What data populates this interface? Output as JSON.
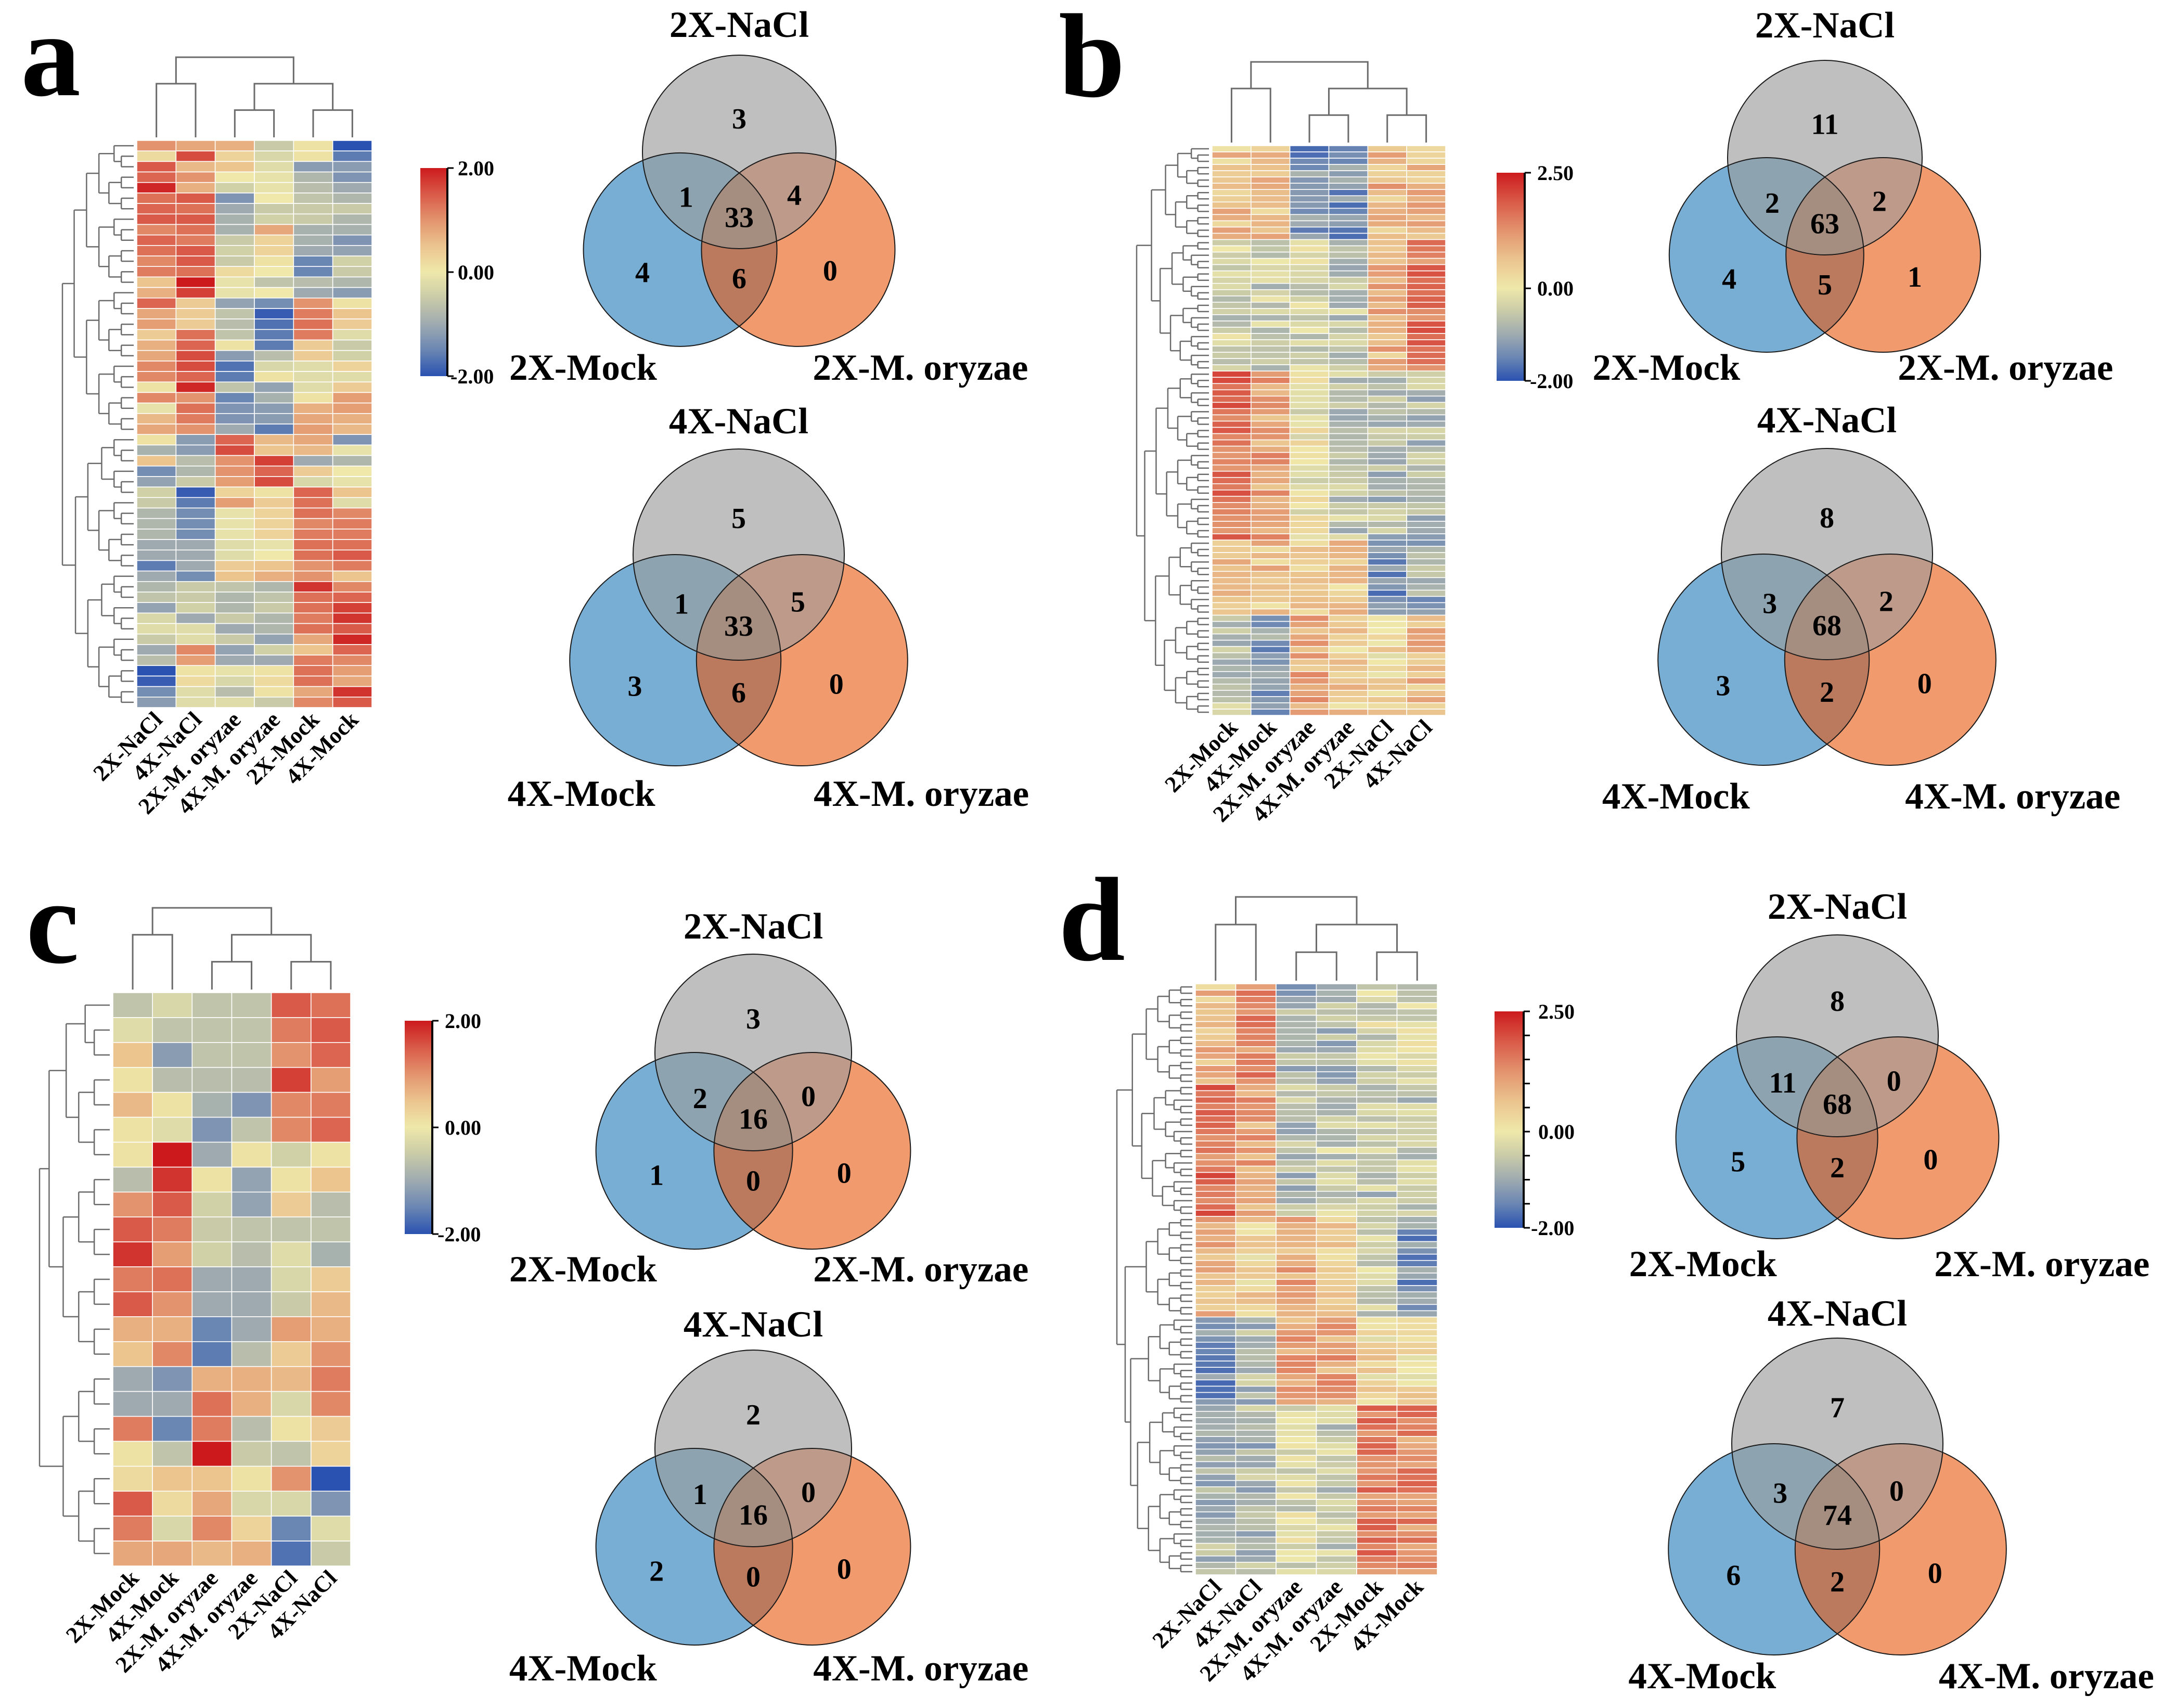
{
  "figure": {
    "panels": [
      {
        "letter": "a"
      },
      {
        "letter": "b"
      },
      {
        "letter": "c"
      },
      {
        "letter": "d"
      }
    ]
  },
  "palette": {
    "venn_top": "#bfbfbf",
    "venn_left": "#79aed4",
    "venn_right": "#f09a6e",
    "venn_top_left": "#8da3b0",
    "venn_top_right": "#bd9a8a",
    "venn_left_right": "#bb7a5e",
    "venn_all": "#a58d80",
    "venn_outline": "#1a1a1a",
    "dendrogram": "#6b6b6b",
    "heatmap_stops": [
      "#2a52b0",
      "#6a86b3",
      "#9eaab0",
      "#c9cba8",
      "#efe8aa",
      "#ebc48e",
      "#e3936e",
      "#d95a48",
      "#cc1a1c"
    ]
  },
  "chart_data": [
    {
      "panel": "a",
      "type": "heatmap",
      "columns": [
        "2X-NaCl",
        "4X-NaCl",
        "2X-M. oryzae",
        "4X-M. oryzae",
        "2X-Mock",
        "4X-Mock"
      ],
      "colorbar": {
        "min": -2,
        "max": 2,
        "max_label": "2.00",
        "mid_label": "0.00",
        "min_label": "-2.00"
      },
      "rows": [
        [
          1.0,
          0.8,
          0.7,
          -0.5,
          0.1,
          -2.0
        ],
        [
          0.2,
          1.6,
          0.3,
          -0.3,
          0.1,
          -1.6
        ],
        [
          1.5,
          0.6,
          0.5,
          -0.2,
          -1.2,
          -1.2
        ],
        [
          1.4,
          1.0,
          0.0,
          -0.1,
          -0.8,
          -1.3
        ],
        [
          1.9,
          0.7,
          -0.4,
          -0.1,
          -0.7,
          -1.0
        ],
        [
          1.3,
          1.5,
          -1.3,
          0.0,
          -0.6,
          -0.8
        ],
        [
          1.4,
          1.3,
          -1.0,
          -0.5,
          -0.5,
          -0.5
        ],
        [
          1.5,
          1.5,
          -0.9,
          -0.4,
          -0.5,
          -0.8
        ],
        [
          1.1,
          1.3,
          -0.9,
          0.8,
          -0.9,
          -0.9
        ],
        [
          1.4,
          1.2,
          -0.5,
          0.3,
          -0.9,
          -1.3
        ],
        [
          1.3,
          1.5,
          -0.4,
          0.3,
          -1.0,
          -1.1
        ],
        [
          1.1,
          1.5,
          -0.5,
          0.1,
          -1.5,
          -0.4
        ],
        [
          1.2,
          1.3,
          0.2,
          0.0,
          -1.5,
          -0.5
        ],
        [
          0.5,
          2.0,
          -0.1,
          -0.6,
          -0.7,
          -0.8
        ],
        [
          0.7,
          1.7,
          -0.1,
          0.0,
          -1.0,
          -1.2
        ],
        [
          1.4,
          0.4,
          -1.1,
          -1.4,
          1.0,
          0.1
        ],
        [
          0.8,
          0.4,
          -0.6,
          -1.9,
          1.2,
          0.5
        ],
        [
          0.9,
          0.4,
          -0.7,
          -1.7,
          1.3,
          0.4
        ],
        [
          0.4,
          1.3,
          -0.6,
          -1.6,
          1.2,
          -0.2
        ],
        [
          0.7,
          1.4,
          0.1,
          -1.6,
          0.4,
          -0.5
        ],
        [
          0.8,
          1.6,
          -1.2,
          -0.7,
          0.4,
          -0.4
        ],
        [
          1.1,
          1.6,
          -1.7,
          -0.3,
          -0.2,
          0.3
        ],
        [
          1.1,
          1.4,
          -1.6,
          0.1,
          -0.2,
          -0.2
        ],
        [
          0.1,
          1.9,
          -0.6,
          -1.1,
          -0.2,
          0.4
        ],
        [
          1.1,
          1.0,
          -1.5,
          -0.9,
          0.1,
          0.9
        ],
        [
          -0.1,
          1.3,
          -1.3,
          -1.2,
          0.7,
          0.9
        ],
        [
          0.6,
          1.2,
          -1.3,
          -1.2,
          0.8,
          0.7
        ],
        [
          0.8,
          1.0,
          -1.0,
          -1.6,
          0.9,
          0.6
        ],
        [
          0.1,
          -1.2,
          1.4,
          0.6,
          0.8,
          -1.3
        ],
        [
          -0.9,
          -1.2,
          1.6,
          0.5,
          0.6,
          -0.1
        ],
        [
          0.5,
          -0.7,
          1.0,
          1.7,
          -1.0,
          -0.8
        ],
        [
          -1.4,
          -0.8,
          1.0,
          1.4,
          0.4,
          0.0
        ],
        [
          -1.1,
          -0.5,
          0.9,
          1.6,
          -0.3,
          -0.1
        ],
        [
          -0.4,
          -1.9,
          0.3,
          0.1,
          1.4,
          0.5
        ],
        [
          -0.5,
          -1.6,
          0.9,
          0.4,
          1.3,
          -0.2
        ],
        [
          -0.8,
          -1.4,
          -0.1,
          0.3,
          1.3,
          1.1
        ],
        [
          -0.8,
          -1.4,
          -0.1,
          0.3,
          1.1,
          1.2
        ],
        [
          -0.8,
          -1.4,
          -0.1,
          0.3,
          1.2,
          1.2
        ],
        [
          -1.0,
          -1.0,
          -0.2,
          -0.1,
          1.3,
          1.3
        ],
        [
          -1.0,
          -1.0,
          -0.2,
          0.0,
          1.3,
          1.5
        ],
        [
          -1.6,
          -1.0,
          0.4,
          0.5,
          1.0,
          1.2
        ],
        [
          -1.0,
          -1.4,
          0.5,
          0.7,
          1.0,
          0.5
        ],
        [
          -0.8,
          -0.5,
          -0.6,
          -0.8,
          1.8,
          1.1
        ],
        [
          -0.6,
          -0.5,
          -0.8,
          -0.6,
          1.3,
          1.4
        ],
        [
          -1.1,
          -0.4,
          -0.8,
          -0.5,
          1.3,
          1.7
        ],
        [
          -0.3,
          -1.0,
          -0.5,
          -0.8,
          1.2,
          1.8
        ],
        [
          -0.2,
          -0.2,
          -1.0,
          -0.8,
          1.3,
          1.5
        ],
        [
          -0.5,
          -0.2,
          -0.5,
          -1.1,
          0.8,
          1.9
        ],
        [
          -1.0,
          1.1,
          -1.1,
          -0.4,
          0.5,
          1.4
        ],
        [
          -0.7,
          0.9,
          -1.0,
          -1.0,
          1.2,
          1.1
        ],
        [
          -2.0,
          0.1,
          -0.1,
          0.1,
          1.3,
          0.9
        ],
        [
          -1.9,
          0.2,
          -0.3,
          0.2,
          1.3,
          0.8
        ],
        [
          -1.4,
          -0.2,
          -0.7,
          0.1,
          0.8,
          1.8
        ],
        [
          -1.2,
          -0.2,
          -0.2,
          -0.5,
          1.1,
          1.5
        ]
      ]
    },
    {
      "panel": "a",
      "type": "venn",
      "title": "2X-NaCl",
      "left": "2X-Mock",
      "right": "2X-M. oryzae",
      "counts": {
        "top": "3",
        "left": "4",
        "right": "0",
        "top_left": "1",
        "top_right": "4",
        "left_right": "6",
        "all": "33"
      }
    },
    {
      "panel": "a",
      "type": "venn",
      "title": "4X-NaCl",
      "left": "4X-Mock",
      "right": "4X-M. oryzae",
      "counts": {
        "top": "5",
        "left": "3",
        "right": "0",
        "top_left": "1",
        "top_right": "5",
        "left_right": "6",
        "all": "33"
      }
    },
    {
      "panel": "b",
      "type": "heatmap",
      "columns": [
        "2X-Mock",
        "4X-Mock",
        "2X-M. oryzae",
        "4X-M. oryzae",
        "2X-NaCl",
        "4X-NaCl"
      ],
      "colorbar": {
        "min": -2,
        "max": 2.5,
        "max_label": "2.50",
        "mid_label": "0.00",
        "min_label": "-2.00"
      },
      "row_blocks": [
        {
          "count": 15,
          "values": [
            0.6,
            0.7,
            -1.3,
            -1.3,
            0.8,
            0.7
          ]
        },
        {
          "count": 21,
          "values": [
            -0.4,
            -0.5,
            -0.3,
            -0.6,
            0.8,
            1.5
          ]
        },
        {
          "count": 27,
          "values": [
            1.6,
            1.0,
            -0.1,
            -0.6,
            -0.7,
            -0.7
          ]
        },
        {
          "count": 12,
          "values": [
            0.9,
            0.6,
            0.4,
            0.5,
            -1.4,
            -1.0
          ]
        },
        {
          "count": 16,
          "values": [
            -0.6,
            -1.2,
            0.9,
            0.5,
            0.3,
            0.7
          ]
        }
      ]
    },
    {
      "panel": "b",
      "type": "venn",
      "title": "2X-NaCl",
      "left": "2X-Mock",
      "right": "2X-M. oryzae",
      "counts": {
        "top": "11",
        "left": "4",
        "right": "1",
        "top_left": "2",
        "top_right": "2",
        "left_right": "5",
        "all": "63"
      }
    },
    {
      "panel": "b",
      "type": "venn",
      "title": "4X-NaCl",
      "left": "4X-Mock",
      "right": "4X-M. oryzae",
      "counts": {
        "top": "8",
        "left": "3",
        "right": "0",
        "top_left": "3",
        "top_right": "2",
        "left_right": "2",
        "all": "68"
      }
    },
    {
      "panel": "c",
      "type": "heatmap",
      "columns": [
        "2X-Mock",
        "4X-Mock",
        "2X-M. oryzae",
        "4X-M. oryzae",
        "2X-NaCl",
        "4X-NaCl"
      ],
      "colorbar": {
        "min": -2,
        "max": 2,
        "max_label": "2.00",
        "mid_label": "0.00",
        "min_label": "-2.00"
      },
      "rows": [
        [
          -0.6,
          -0.3,
          -0.6,
          -0.6,
          1.5,
          1.3
        ],
        [
          -0.2,
          -0.6,
          -0.6,
          -0.6,
          1.2,
          1.5
        ],
        [
          0.5,
          -1.2,
          -0.6,
          -0.6,
          1.0,
          1.4
        ],
        [
          0.1,
          -0.7,
          -0.7,
          -0.7,
          1.7,
          0.9
        ],
        [
          0.6,
          0.1,
          -0.9,
          -1.3,
          1.1,
          1.2
        ],
        [
          0.1,
          -0.2,
          -1.3,
          -0.6,
          1.1,
          1.4
        ],
        [
          0.1,
          2.0,
          -1.0,
          0.1,
          -0.4,
          0.1
        ],
        [
          -0.7,
          1.8,
          0.1,
          -1.1,
          0.1,
          0.5
        ],
        [
          1.0,
          1.5,
          -0.4,
          -1.1,
          0.4,
          -0.7
        ],
        [
          1.5,
          1.2,
          -0.5,
          -0.6,
          -0.6,
          -0.6
        ],
        [
          1.8,
          0.9,
          -0.4,
          -0.7,
          -0.2,
          -0.9
        ],
        [
          1.2,
          1.3,
          -1.0,
          -1.0,
          -0.3,
          0.4
        ],
        [
          1.5,
          1.0,
          -1.0,
          -1.0,
          -0.5,
          0.6
        ],
        [
          0.7,
          0.7,
          -1.5,
          -1.0,
          0.9,
          0.7
        ],
        [
          0.5,
          1.1,
          -1.6,
          -0.7,
          0.4,
          1.0
        ],
        [
          -1.0,
          -1.3,
          0.7,
          0.7,
          0.6,
          1.2
        ],
        [
          -1.0,
          -1.0,
          1.3,
          0.7,
          -0.3,
          1.1
        ],
        [
          1.2,
          -1.5,
          1.2,
          -0.7,
          0.1,
          0.4
        ],
        [
          0.1,
          -0.6,
          2.0,
          -0.5,
          -0.6,
          0.3
        ],
        [
          0.2,
          0.5,
          0.5,
          0.1,
          1.0,
          -2.0
        ],
        [
          1.5,
          0.2,
          0.8,
          -0.3,
          -0.3,
          -1.3
        ],
        [
          1.2,
          -0.3,
          1.1,
          0.3,
          -1.5,
          -0.2
        ],
        [
          0.8,
          0.8,
          0.6,
          0.7,
          -1.7,
          -0.5
        ]
      ]
    },
    {
      "panel": "c",
      "type": "venn",
      "title": "2X-NaCl",
      "left": "2X-Mock",
      "right": "2X-M. oryzae",
      "counts": {
        "top": "3",
        "left": "1",
        "right": "0",
        "top_left": "2",
        "top_right": "0",
        "left_right": "0",
        "all": "16"
      }
    },
    {
      "panel": "c",
      "type": "venn",
      "title": "4X-NaCl",
      "left": "4X-Mock",
      "right": "4X-M. oryzae",
      "counts": {
        "top": "2",
        "left": "2",
        "right": "0",
        "top_left": "1",
        "top_right": "0",
        "left_right": "0",
        "all": "16"
      }
    },
    {
      "panel": "d",
      "type": "heatmap",
      "columns": [
        "2X-NaCl",
        "4X-NaCl",
        "2X-M. oryzae",
        "4X-M. oryzae",
        "2X-Mock",
        "4X-Mock"
      ],
      "colorbar": {
        "min": -2,
        "max": 2.5,
        "max_label": "2.50",
        "mid_label": "0.00",
        "min_label": "-2.00"
      },
      "row_blocks": [
        {
          "count": 16,
          "values": [
            0.7,
            1.4,
            -0.9,
            -0.8,
            -0.3,
            -0.3
          ]
        },
        {
          "count": 21,
          "values": [
            1.6,
            1.0,
            -0.7,
            -0.5,
            -0.6,
            -0.6
          ]
        },
        {
          "count": 16,
          "values": [
            0.8,
            0.3,
            0.9,
            0.6,
            -0.4,
            -1.3
          ]
        },
        {
          "count": 14,
          "values": [
            -1.3,
            -0.8,
            1.0,
            1.0,
            0.3,
            0.3
          ]
        },
        {
          "count": 27,
          "values": [
            -0.8,
            -0.8,
            -0.3,
            -0.5,
            1.5,
            1.3
          ]
        }
      ]
    },
    {
      "panel": "d",
      "type": "venn",
      "title": "2X-NaCl",
      "left": "2X-Mock",
      "right": "2X-M. oryzae",
      "counts": {
        "top": "8",
        "left": "5",
        "right": "0",
        "top_left": "11",
        "top_right": "0",
        "left_right": "2",
        "all": "68"
      }
    },
    {
      "panel": "d",
      "type": "venn",
      "title": "4X-NaCl",
      "left": "4X-Mock",
      "right": "4X-M. oryzae",
      "counts": {
        "top": "7",
        "left": "6",
        "right": "0",
        "top_left": "3",
        "top_right": "0",
        "left_right": "2",
        "all": "74"
      }
    }
  ]
}
